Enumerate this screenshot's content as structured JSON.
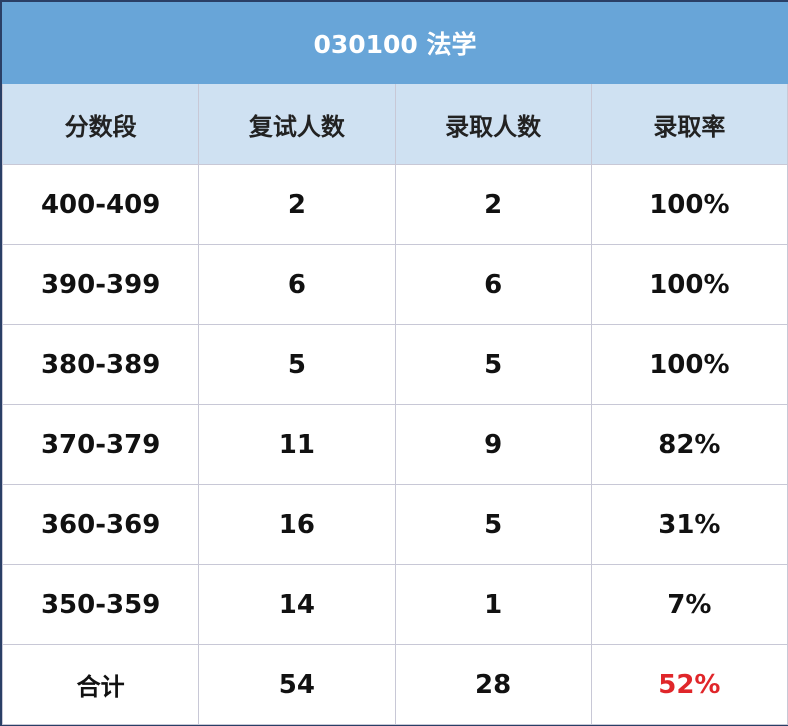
{
  "table": {
    "title": "030100 法学",
    "headers": [
      "分数段",
      "复试人数",
      "录取人数",
      "录取率"
    ],
    "rows": [
      [
        "400-409",
        "2",
        "2",
        "100%"
      ],
      [
        "390-399",
        "6",
        "6",
        "100%"
      ],
      [
        "380-389",
        "5",
        "5",
        "100%"
      ],
      [
        "370-379",
        "11",
        "9",
        "82%"
      ],
      [
        "360-369",
        "16",
        "5",
        "31%"
      ],
      [
        "350-359",
        "14",
        "1",
        "7%"
      ],
      [
        "合计",
        "54",
        "28",
        "52%"
      ]
    ],
    "colors": {
      "title_bg": "#68a5d8",
      "header_bg": "#cfe1f2",
      "total_rate": "#e0262a"
    }
  }
}
